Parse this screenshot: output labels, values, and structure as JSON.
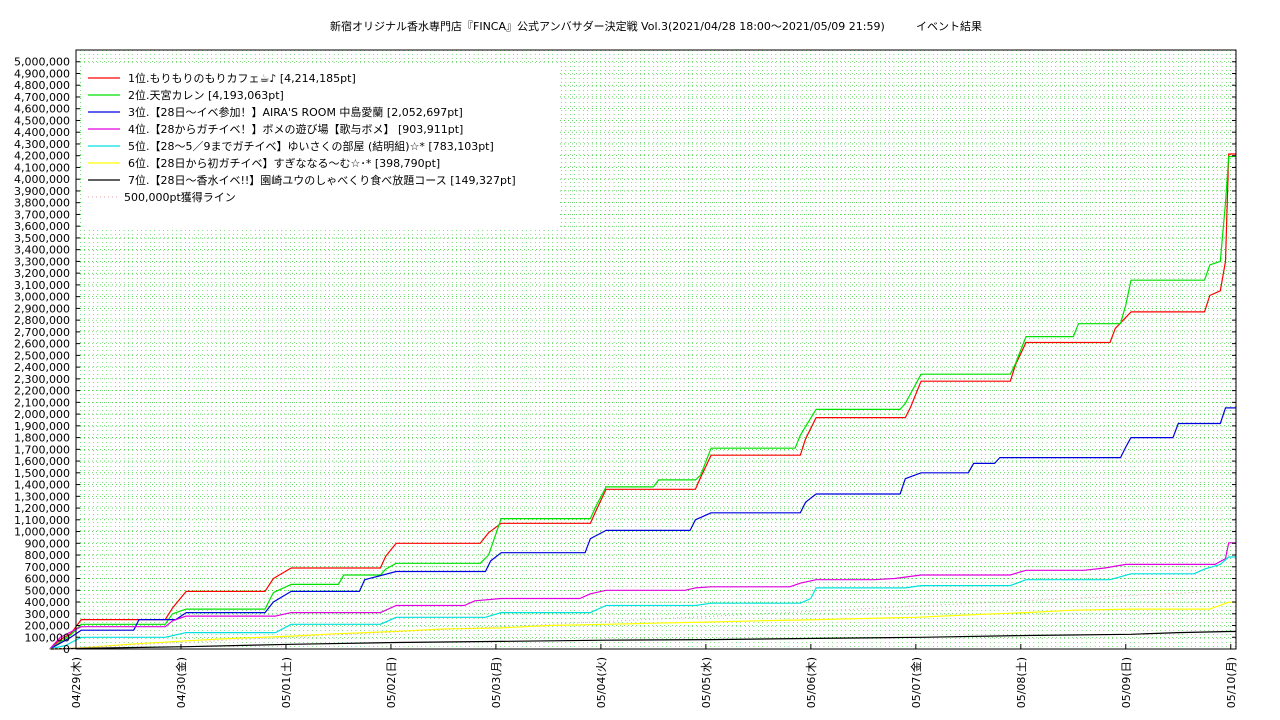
{
  "chart_data": {
    "type": "line",
    "title": "新宿オリジナル香水専門店『FINCA』公式アンバサダー決定戦 Vol.3(2021/04/28 18:00〜2021/05/09 21:59)",
    "subtitle": "イベント結果",
    "xlabel": "",
    "ylabel": "",
    "ylim": [
      0,
      5100000
    ],
    "xlim": [
      0,
      11.05
    ],
    "grid": true,
    "legend_position": "top-left",
    "y_ticks": [
      "0",
      "100,000",
      "200,000",
      "300,000",
      "400,000",
      "500,000",
      "600,000",
      "700,000",
      "800,000",
      "900,000",
      "1,000,000",
      "1,100,000",
      "1,200,000",
      "1,300,000",
      "1,400,000",
      "1,500,000",
      "1,600,000",
      "1,700,000",
      "1,800,000",
      "1,900,000",
      "2,000,000",
      "2,100,000",
      "2,200,000",
      "2,300,000",
      "2,400,000",
      "2,500,000",
      "2,600,000",
      "2,700,000",
      "2,800,000",
      "2,900,000",
      "3,000,000",
      "3,100,000",
      "3,200,000",
      "3,300,000",
      "3,400,000",
      "3,500,000",
      "3,600,000",
      "3,700,000",
      "3,800,000",
      "3,900,000",
      "4,000,000",
      "4,100,000",
      "4,200,000",
      "4,300,000",
      "4,400,000",
      "4,500,000",
      "4,600,000",
      "4,700,000",
      "4,800,000",
      "4,900,000",
      "5,000,000"
    ],
    "x_ticks": [
      "04/29(木)",
      "04/30(金)",
      "05/01(土)",
      "05/02(日)",
      "05/03(月)",
      "05/04(火)",
      "05/05(水)",
      "05/06(木)",
      "05/07(金)",
      "05/08(土)",
      "05/09(日)",
      "05/10(月)"
    ],
    "series": [
      {
        "name": "1位.もりもりのもりカフェ☕♪ [4,214,185pt]",
        "color": "#ff0000",
        "dashed": false,
        "points": [
          [
            -0.25,
            0
          ],
          [
            -0.15,
            80000
          ],
          [
            -0.05,
            130000
          ],
          [
            0.05,
            250000
          ],
          [
            0.85,
            250000
          ],
          [
            0.92,
            350000
          ],
          [
            1.05,
            490000
          ],
          [
            1.8,
            490000
          ],
          [
            1.88,
            600000
          ],
          [
            2.05,
            690000
          ],
          [
            2.9,
            690000
          ],
          [
            2.95,
            790000
          ],
          [
            3.05,
            900000
          ],
          [
            3.85,
            900000
          ],
          [
            3.93,
            990000
          ],
          [
            4.05,
            1070000
          ],
          [
            4.9,
            1070000
          ],
          [
            4.95,
            1170000
          ],
          [
            5.05,
            1360000
          ],
          [
            5.9,
            1360000
          ],
          [
            5.95,
            1460000
          ],
          [
            6.05,
            1650000
          ],
          [
            6.9,
            1650000
          ],
          [
            6.95,
            1790000
          ],
          [
            7.05,
            1970000
          ],
          [
            7.9,
            1970000
          ],
          [
            7.95,
            2060000
          ],
          [
            8.05,
            2280000
          ],
          [
            8.9,
            2280000
          ],
          [
            8.95,
            2420000
          ],
          [
            9.05,
            2610000
          ],
          [
            9.85,
            2610000
          ],
          [
            9.9,
            2730000
          ],
          [
            10.05,
            2870000
          ],
          [
            10.75,
            2870000
          ],
          [
            10.8,
            3010000
          ],
          [
            10.9,
            3050000
          ],
          [
            10.95,
            3300000
          ],
          [
            10.98,
            4214185
          ],
          [
            11.05,
            4214185
          ]
        ]
      },
      {
        "name": "2位.天宮カレン [4,193,063pt]",
        "color": "#00e000",
        "dashed": false,
        "points": [
          [
            -0.25,
            0
          ],
          [
            -0.15,
            60000
          ],
          [
            -0.05,
            120000
          ],
          [
            0.05,
            210000
          ],
          [
            0.85,
            210000
          ],
          [
            0.92,
            300000
          ],
          [
            1.05,
            340000
          ],
          [
            1.8,
            340000
          ],
          [
            1.88,
            480000
          ],
          [
            2.05,
            550000
          ],
          [
            2.5,
            550000
          ],
          [
            2.55,
            630000
          ],
          [
            2.9,
            630000
          ],
          [
            2.95,
            680000
          ],
          [
            3.05,
            730000
          ],
          [
            3.85,
            730000
          ],
          [
            3.93,
            800000
          ],
          [
            4.05,
            1110000
          ],
          [
            4.9,
            1110000
          ],
          [
            4.95,
            1210000
          ],
          [
            5.05,
            1380000
          ],
          [
            5.5,
            1380000
          ],
          [
            5.55,
            1440000
          ],
          [
            5.9,
            1440000
          ],
          [
            5.95,
            1480000
          ],
          [
            6.05,
            1710000
          ],
          [
            6.85,
            1710000
          ],
          [
            6.9,
            1820000
          ],
          [
            7.05,
            2040000
          ],
          [
            7.85,
            2040000
          ],
          [
            7.9,
            2090000
          ],
          [
            8.05,
            2340000
          ],
          [
            8.9,
            2340000
          ],
          [
            8.95,
            2430000
          ],
          [
            9.05,
            2660000
          ],
          [
            9.5,
            2660000
          ],
          [
            9.55,
            2770000
          ],
          [
            9.95,
            2770000
          ],
          [
            10.0,
            2930000
          ],
          [
            10.05,
            3140000
          ],
          [
            10.75,
            3140000
          ],
          [
            10.8,
            3270000
          ],
          [
            10.9,
            3300000
          ],
          [
            10.95,
            3800000
          ],
          [
            10.98,
            4193063
          ],
          [
            11.05,
            4193063
          ]
        ]
      },
      {
        "name": "3位.【28日〜イベ参加！】AIRA'S ROOM 中島愛蘭 [2,052,697pt]",
        "color": "#0000e0",
        "dashed": false,
        "points": [
          [
            -0.25,
            0
          ],
          [
            -0.05,
            100000
          ],
          [
            0.05,
            160000
          ],
          [
            0.55,
            160000
          ],
          [
            0.6,
            250000
          ],
          [
            0.95,
            250000
          ],
          [
            1.05,
            310000
          ],
          [
            1.8,
            310000
          ],
          [
            1.88,
            400000
          ],
          [
            2.05,
            490000
          ],
          [
            2.7,
            490000
          ],
          [
            2.75,
            590000
          ],
          [
            3.05,
            660000
          ],
          [
            3.9,
            660000
          ],
          [
            3.95,
            750000
          ],
          [
            4.05,
            820000
          ],
          [
            4.85,
            820000
          ],
          [
            4.9,
            940000
          ],
          [
            5.05,
            1010000
          ],
          [
            5.85,
            1010000
          ],
          [
            5.9,
            1100000
          ],
          [
            6.05,
            1160000
          ],
          [
            6.9,
            1160000
          ],
          [
            6.95,
            1250000
          ],
          [
            7.05,
            1320000
          ],
          [
            7.85,
            1320000
          ],
          [
            7.9,
            1450000
          ],
          [
            8.05,
            1500000
          ],
          [
            8.5,
            1500000
          ],
          [
            8.55,
            1580000
          ],
          [
            8.75,
            1580000
          ],
          [
            8.8,
            1630000
          ],
          [
            9.95,
            1630000
          ],
          [
            10.0,
            1720000
          ],
          [
            10.05,
            1800000
          ],
          [
            10.45,
            1800000
          ],
          [
            10.5,
            1920000
          ],
          [
            10.9,
            1920000
          ],
          [
            10.95,
            2052697
          ],
          [
            11.05,
            2052697
          ]
        ]
      },
      {
        "name": "4位.【28からガチイベ！】ボメの遊び場【歌与ボメ】 [903,911pt]",
        "color": "#e000e0",
        "dashed": false,
        "points": [
          [
            -0.25,
            0
          ],
          [
            -0.15,
            100000
          ],
          [
            0.05,
            190000
          ],
          [
            0.85,
            190000
          ],
          [
            0.92,
            240000
          ],
          [
            1.05,
            280000
          ],
          [
            1.9,
            280000
          ],
          [
            2.05,
            310000
          ],
          [
            2.9,
            310000
          ],
          [
            3.05,
            370000
          ],
          [
            3.7,
            370000
          ],
          [
            3.8,
            410000
          ],
          [
            4.05,
            430000
          ],
          [
            4.8,
            430000
          ],
          [
            4.9,
            470000
          ],
          [
            5.05,
            500000
          ],
          [
            5.8,
            500000
          ],
          [
            5.9,
            520000
          ],
          [
            6.05,
            530000
          ],
          [
            6.8,
            530000
          ],
          [
            6.9,
            560000
          ],
          [
            7.05,
            590000
          ],
          [
            7.6,
            590000
          ],
          [
            7.8,
            600000
          ],
          [
            8.05,
            630000
          ],
          [
            8.9,
            630000
          ],
          [
            9.05,
            670000
          ],
          [
            9.6,
            670000
          ],
          [
            9.8,
            690000
          ],
          [
            10.0,
            720000
          ],
          [
            10.85,
            720000
          ],
          [
            10.95,
            770000
          ],
          [
            10.98,
            903911
          ],
          [
            11.05,
            903911
          ]
        ]
      },
      {
        "name": "5位.【28〜5／9までガチイベ】ゆいさくの部屋 (結明組)☆* [783,103pt]",
        "color": "#00e0e0",
        "dashed": false,
        "points": [
          [
            -0.25,
            0
          ],
          [
            -0.1,
            30000
          ],
          [
            0.05,
            100000
          ],
          [
            0.85,
            100000
          ],
          [
            1.05,
            140000
          ],
          [
            1.9,
            140000
          ],
          [
            2.05,
            210000
          ],
          [
            2.9,
            210000
          ],
          [
            3.05,
            270000
          ],
          [
            3.9,
            270000
          ],
          [
            4.05,
            310000
          ],
          [
            4.9,
            310000
          ],
          [
            5.05,
            370000
          ],
          [
            5.9,
            370000
          ],
          [
            6.05,
            390000
          ],
          [
            6.9,
            390000
          ],
          [
            7.0,
            430000
          ],
          [
            7.05,
            520000
          ],
          [
            7.9,
            520000
          ],
          [
            8.05,
            540000
          ],
          [
            8.9,
            540000
          ],
          [
            9.05,
            590000
          ],
          [
            9.85,
            590000
          ],
          [
            10.05,
            640000
          ],
          [
            10.65,
            640000
          ],
          [
            10.75,
            680000
          ],
          [
            10.9,
            720000
          ],
          [
            10.98,
            783103
          ],
          [
            11.05,
            783103
          ]
        ]
      },
      {
        "name": "6位.【28日から初ガチイベ】すぎななる〜む☆･* [398,790pt]",
        "color": "#ffff00",
        "dashed": false,
        "points": [
          [
            -0.25,
            0
          ],
          [
            0.05,
            10000
          ],
          [
            0.5,
            40000
          ],
          [
            1.05,
            70000
          ],
          [
            1.5,
            90000
          ],
          [
            2.05,
            110000
          ],
          [
            2.5,
            130000
          ],
          [
            3.05,
            150000
          ],
          [
            3.5,
            170000
          ],
          [
            4.05,
            180000
          ],
          [
            4.5,
            200000
          ],
          [
            5.05,
            210000
          ],
          [
            5.5,
            220000
          ],
          [
            6.05,
            230000
          ],
          [
            6.5,
            240000
          ],
          [
            7.05,
            250000
          ],
          [
            7.5,
            260000
          ],
          [
            8.0,
            270000
          ],
          [
            8.5,
            290000
          ],
          [
            9.05,
            310000
          ],
          [
            9.5,
            330000
          ],
          [
            10.05,
            340000
          ],
          [
            10.8,
            340000
          ],
          [
            10.98,
            398790
          ],
          [
            11.05,
            398790
          ]
        ]
      },
      {
        "name": "7位.【28日〜香水イベ!!】園崎ユウのしゃべくり食べ放題コース [149,327pt]",
        "color": "#000000",
        "dashed": false,
        "points": [
          [
            -0.25,
            0
          ],
          [
            0.05,
            5000
          ],
          [
            1.05,
            20000
          ],
          [
            2.05,
            40000
          ],
          [
            3.05,
            55000
          ],
          [
            4.05,
            65000
          ],
          [
            5.05,
            75000
          ],
          [
            6.05,
            80000
          ],
          [
            7.05,
            90000
          ],
          [
            8.05,
            100000
          ],
          [
            9.05,
            115000
          ],
          [
            10.05,
            125000
          ],
          [
            10.5,
            140000
          ],
          [
            10.98,
            149327
          ],
          [
            11.05,
            149327
          ]
        ]
      },
      {
        "name": "500,000pt獲得ライン",
        "color": "#e0a0a0",
        "dashed": true,
        "points": [
          [
            -0.25,
            0
          ],
          [
            11.05,
            500000
          ]
        ]
      }
    ]
  }
}
